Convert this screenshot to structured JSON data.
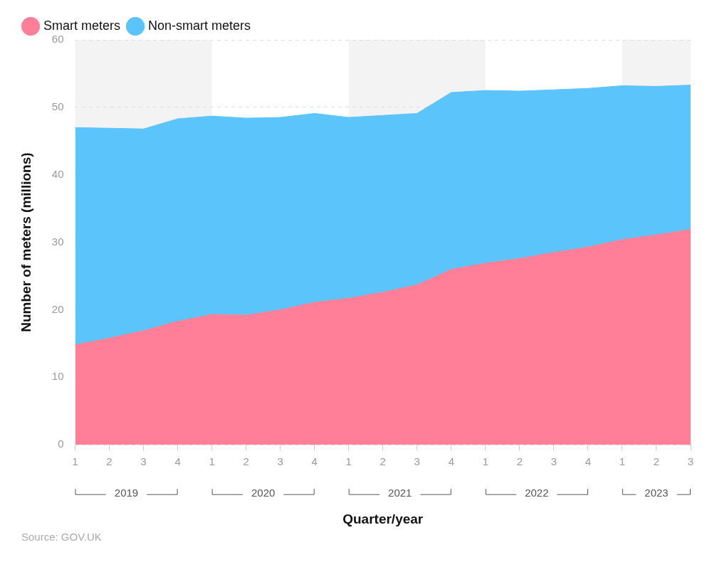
{
  "chart_data": {
    "type": "area",
    "x_label": "Quarter/year",
    "y_label": "Number of meters (millions)",
    "source": "Source: GOV.UK",
    "categories": [
      "1",
      "2",
      "3",
      "4",
      "1",
      "2",
      "3",
      "4",
      "1",
      "2",
      "3",
      "4",
      "1",
      "2",
      "3",
      "4",
      "1",
      "2",
      "3"
    ],
    "year_labels": [
      "2019",
      "2020",
      "2021",
      "2022",
      "2023"
    ],
    "series": [
      {
        "name": "Smart meters",
        "color": "#ff7f98",
        "values": [
          14.8,
          15.8,
          16.9,
          18.3,
          19.3,
          19.2,
          20.0,
          21.1,
          21.7,
          22.6,
          23.7,
          26.0,
          26.9,
          27.6,
          28.5,
          29.3,
          30.4,
          31.1,
          31.9
        ]
      },
      {
        "name": "Non-smart meters",
        "color": "#5bc4fb",
        "values": [
          32.2,
          31.1,
          29.9,
          30.0,
          29.4,
          29.2,
          28.5,
          28.0,
          26.8,
          26.2,
          25.4,
          26.2,
          25.6,
          24.8,
          24.1,
          23.5,
          22.8,
          22.0,
          21.4
        ]
      }
    ],
    "ylim": [
      0,
      60
    ],
    "yticks": [
      0,
      10,
      20,
      30,
      40,
      50,
      60
    ],
    "grid": true,
    "stacked": true,
    "legend": "top-left"
  }
}
